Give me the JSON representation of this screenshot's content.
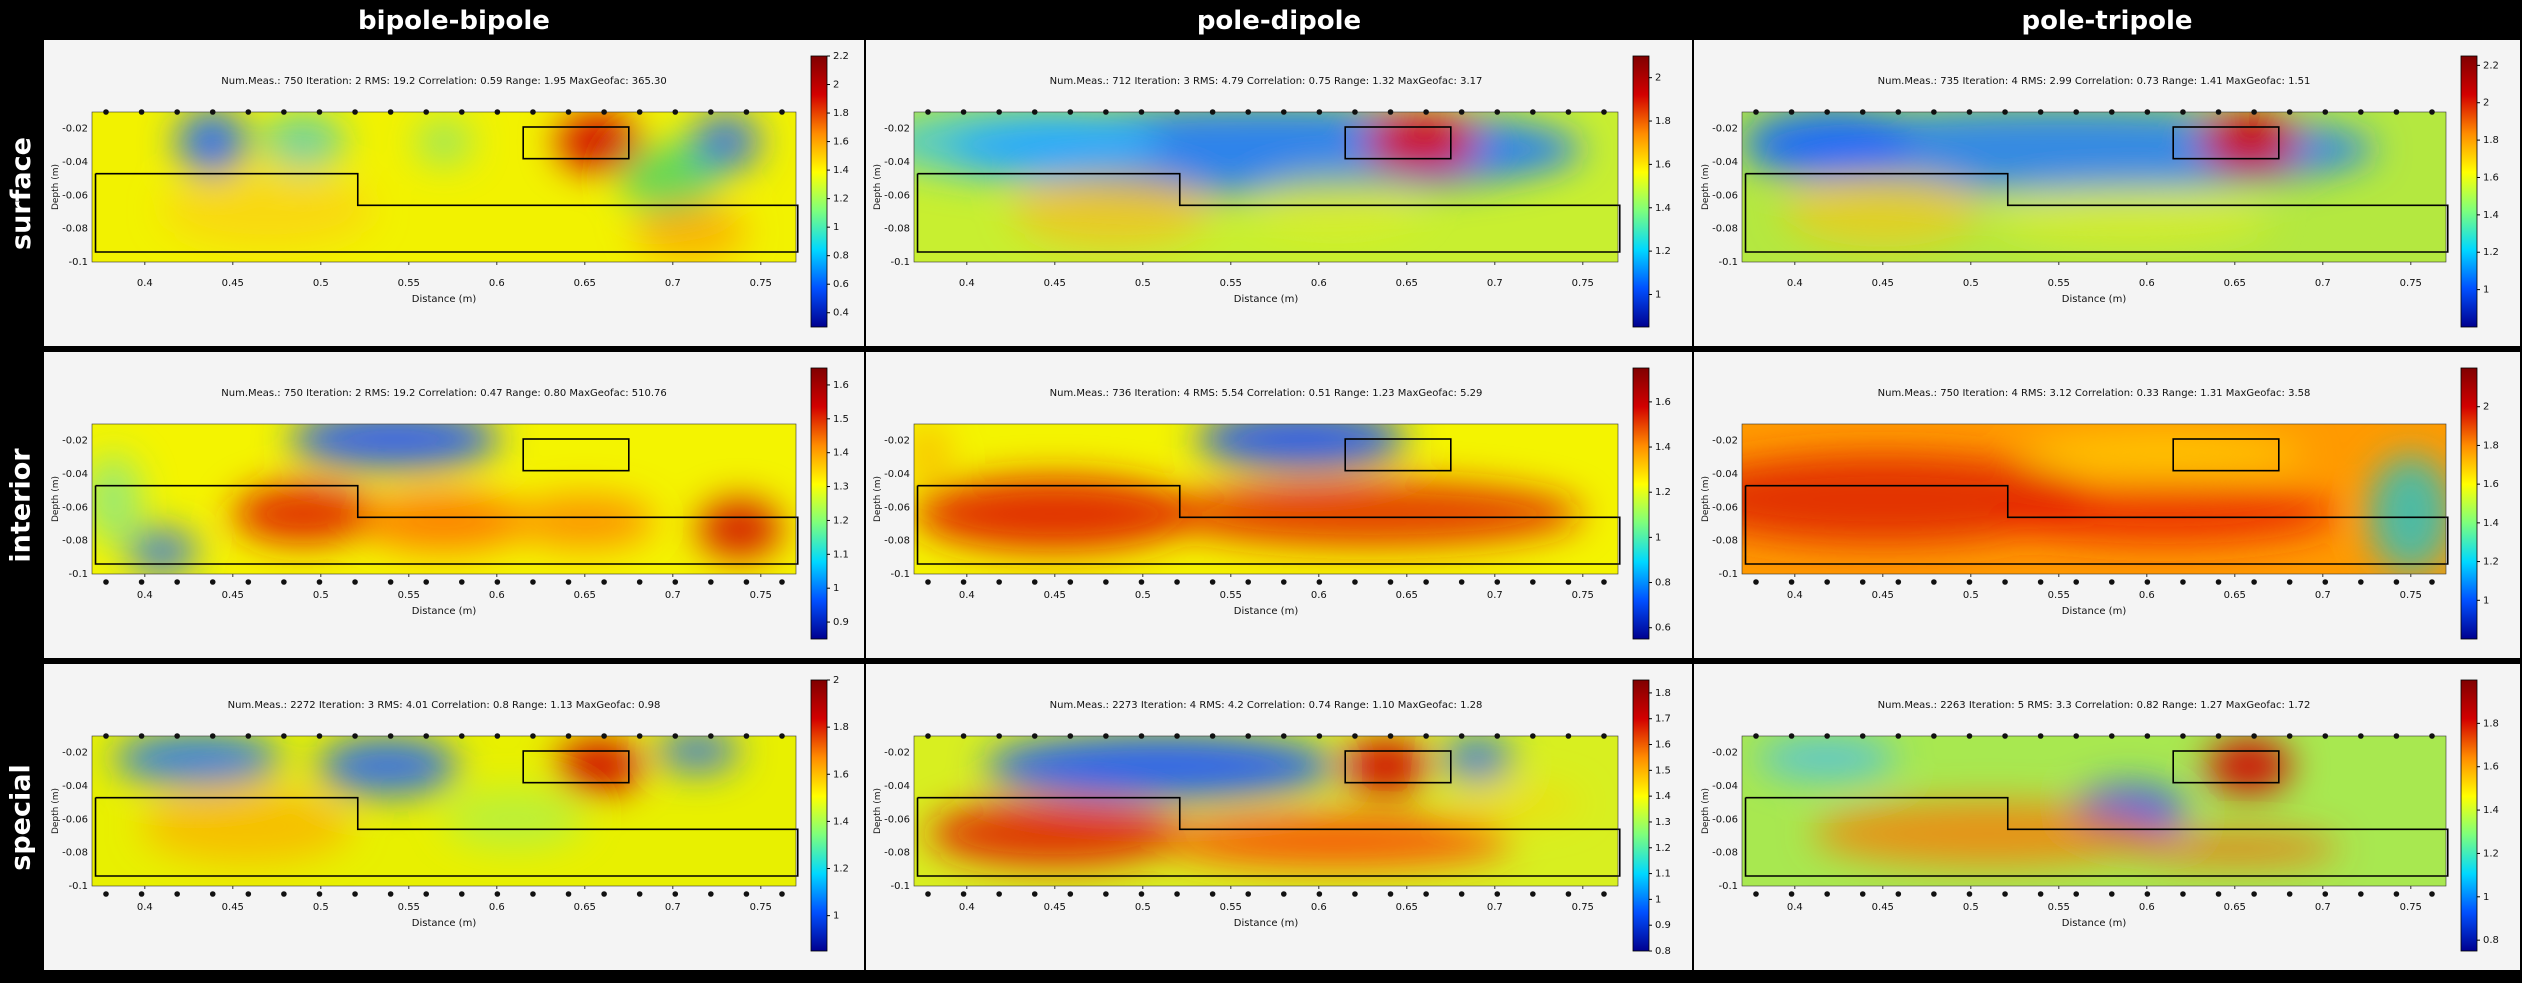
{
  "columns": [
    "bipole-bipole",
    "pole-dipole",
    "pole-tripole"
  ],
  "rows": [
    "surface",
    "interior",
    "special"
  ],
  "colors": {
    "colormap": [
      "#00008f",
      "#0050ff",
      "#00d8ff",
      "#7dff7d",
      "#ffff00",
      "#ff8c00",
      "#d20000",
      "#800000"
    ],
    "background": "#000000",
    "panel": "#f4f4f4"
  },
  "chart_data": [
    {
      "type": "heatmap",
      "id": "surface-bipole-bipole",
      "stats": "Num.Meas.: 750   Iteration: 2   RMS: 19.2   Correlation: 0.59   Range: 1.95   MaxGeofac: 365.30",
      "xlabel": "Distance (m)",
      "ylabel": "Depth (m)",
      "xlim": [
        0.37,
        0.77
      ],
      "ylim": [
        -0.1,
        -0.01
      ],
      "xticks": [
        "0.4",
        "0.45",
        "0.5",
        "0.55",
        "0.6",
        "0.65",
        "0.7",
        "0.75"
      ],
      "yticks": [
        "-0.02",
        "-0.04",
        "-0.06",
        "-0.08",
        "-0.1"
      ],
      "colorbar": {
        "min": 0.3,
        "max": 2.2,
        "ticks": [
          "2.2",
          "2",
          "1.8",
          "1.6",
          "1.4",
          "1.2",
          "1",
          "0.8",
          "0.6",
          "0.4"
        ]
      },
      "electrodes": "top"
    },
    {
      "type": "heatmap",
      "id": "surface-pole-dipole",
      "stats": "Num.Meas.: 712   Iteration: 3   RMS: 4.79   Correlation: 0.75   Range: 1.32   MaxGeofac: 3.17",
      "xlabel": "Distance (m)",
      "ylabel": "Depth (m)",
      "xlim": [
        0.37,
        0.77
      ],
      "ylim": [
        -0.1,
        -0.01
      ],
      "xticks": [
        "0.4",
        "0.45",
        "0.5",
        "0.55",
        "0.6",
        "0.65",
        "0.7",
        "0.75"
      ],
      "yticks": [
        "-0.02",
        "-0.04",
        "-0.06",
        "-0.08",
        "-0.1"
      ],
      "colorbar": {
        "min": 0.85,
        "max": 2.1,
        "ticks": [
          "2",
          "1.8",
          "1.6",
          "1.4",
          "1.2",
          "1"
        ]
      },
      "electrodes": "top"
    },
    {
      "type": "heatmap",
      "id": "surface-pole-tripole",
      "stats": "Num.Meas.: 735   Iteration: 4   RMS: 2.99   Correlation: 0.73   Range: 1.41   MaxGeofac: 1.51",
      "xlabel": "Distance (m)",
      "ylabel": "Depth (m)",
      "xlim": [
        0.37,
        0.77
      ],
      "ylim": [
        -0.1,
        -0.01
      ],
      "xticks": [
        "0.4",
        "0.45",
        "0.5",
        "0.55",
        "0.6",
        "0.65",
        "0.7",
        "0.75"
      ],
      "yticks": [
        "-0.02",
        "-0.04",
        "-0.06",
        "-0.08",
        "-0.1"
      ],
      "colorbar": {
        "min": 0.8,
        "max": 2.25,
        "ticks": [
          "2.2",
          "2",
          "1.8",
          "1.6",
          "1.4",
          "1.2",
          "1"
        ]
      },
      "electrodes": "top"
    },
    {
      "type": "heatmap",
      "id": "interior-bipole-bipole",
      "stats": "Num.Meas.: 750   Iteration: 2   RMS: 19.2   Correlation: 0.47   Range: 0.80   MaxGeofac: 510.76",
      "xlabel": "Distance (m)",
      "ylabel": "Depth (m)",
      "xlim": [
        0.37,
        0.77
      ],
      "ylim": [
        -0.1,
        -0.01
      ],
      "xticks": [
        "0.4",
        "0.45",
        "0.5",
        "0.55",
        "0.6",
        "0.65",
        "0.7",
        "0.75"
      ],
      "yticks": [
        "-0.02",
        "-0.04",
        "-0.06",
        "-0.08",
        "-0.1"
      ],
      "colorbar": {
        "min": 0.85,
        "max": 1.65,
        "ticks": [
          "1.6",
          "1.5",
          "1.4",
          "1.3",
          "1.2",
          "1.1",
          "1",
          "0.9"
        ]
      },
      "electrodes": "bottom"
    },
    {
      "type": "heatmap",
      "id": "interior-pole-dipole",
      "stats": "Num.Meas.: 736   Iteration: 4   RMS: 5.54   Correlation: 0.51   Range: 1.23   MaxGeofac: 5.29",
      "xlabel": "Distance (m)",
      "ylabel": "Depth (m)",
      "xlim": [
        0.37,
        0.77
      ],
      "ylim": [
        -0.1,
        -0.01
      ],
      "xticks": [
        "0.4",
        "0.45",
        "0.5",
        "0.55",
        "0.6",
        "0.65",
        "0.7",
        "0.75"
      ],
      "yticks": [
        "-0.02",
        "-0.04",
        "-0.06",
        "-0.08",
        "-0.1"
      ],
      "colorbar": {
        "min": 0.55,
        "max": 1.75,
        "ticks": [
          "1.6",
          "1.4",
          "1.2",
          "1",
          "0.8",
          "0.6"
        ]
      },
      "electrodes": "bottom"
    },
    {
      "type": "heatmap",
      "id": "interior-pole-tripole",
      "stats": "Num.Meas.: 750   Iteration: 4   RMS: 3.12   Correlation: 0.33   Range: 1.31   MaxGeofac: 3.58",
      "xlabel": "Distance (m)",
      "ylabel": "Depth (m)",
      "xlim": [
        0.37,
        0.77
      ],
      "ylim": [
        -0.1,
        -0.01
      ],
      "xticks": [
        "0.4",
        "0.45",
        "0.5",
        "0.55",
        "0.6",
        "0.65",
        "0.7",
        "0.75"
      ],
      "yticks": [
        "-0.02",
        "-0.04",
        "-0.06",
        "-0.08",
        "-0.1"
      ],
      "colorbar": {
        "min": 0.8,
        "max": 2.2,
        "ticks": [
          "2",
          "1.8",
          "1.6",
          "1.4",
          "1.2",
          "1"
        ]
      },
      "electrodes": "bottom"
    },
    {
      "type": "heatmap",
      "id": "special-bipole-bipole",
      "stats": "Num.Meas.: 2272   Iteration: 3   RMS: 4.01   Correlation: 0.8   Range: 1.13   MaxGeofac: 0.98",
      "xlabel": "Distance (m)",
      "ylabel": "Depth (m)",
      "xlim": [
        0.37,
        0.77
      ],
      "ylim": [
        -0.1,
        -0.01
      ],
      "xticks": [
        "0.4",
        "0.45",
        "0.5",
        "0.55",
        "0.6",
        "0.65",
        "0.7",
        "0.75"
      ],
      "yticks": [
        "-0.02",
        "-0.04",
        "-0.06",
        "-0.08",
        "-0.1"
      ],
      "colorbar": {
        "min": 0.85,
        "max": 2.0,
        "ticks": [
          "2",
          "1.8",
          "1.6",
          "1.4",
          "1.2",
          "1"
        ]
      },
      "electrodes": "both"
    },
    {
      "type": "heatmap",
      "id": "special-pole-dipole",
      "stats": "Num.Meas.: 2273   Iteration: 4   RMS: 4.2   Correlation: 0.74   Range: 1.10   MaxGeofac: 1.28",
      "xlabel": "Distance (m)",
      "ylabel": "Depth (m)",
      "xlim": [
        0.37,
        0.77
      ],
      "ylim": [
        -0.1,
        -0.01
      ],
      "xticks": [
        "0.4",
        "0.45",
        "0.5",
        "0.55",
        "0.6",
        "0.65",
        "0.7",
        "0.75"
      ],
      "yticks": [
        "-0.02",
        "-0.04",
        "-0.06",
        "-0.08",
        "-0.1"
      ],
      "colorbar": {
        "min": 0.8,
        "max": 1.85,
        "ticks": [
          "1.8",
          "1.7",
          "1.6",
          "1.5",
          "1.4",
          "1.3",
          "1.2",
          "1.1",
          "1",
          "0.9",
          "0.8"
        ]
      },
      "electrodes": "both"
    },
    {
      "type": "heatmap",
      "id": "special-pole-tripole",
      "stats": "Num.Meas.: 2263   Iteration: 5   RMS: 3.3   Correlation: 0.82   Range: 1.27   MaxGeofac: 1.72",
      "xlabel": "Distance (m)",
      "ylabel": "Depth (m)",
      "xlim": [
        0.37,
        0.77
      ],
      "ylim": [
        -0.1,
        -0.01
      ],
      "xticks": [
        "0.4",
        "0.45",
        "0.5",
        "0.55",
        "0.6",
        "0.65",
        "0.7",
        "0.75"
      ],
      "yticks": [
        "-0.02",
        "-0.04",
        "-0.06",
        "-0.08",
        "-0.1"
      ],
      "colorbar": {
        "min": 0.75,
        "max": 2.0,
        "ticks": [
          "1.8",
          "1.6",
          "1.4",
          "1.2",
          "1",
          "0.8"
        ]
      },
      "electrodes": "both"
    }
  ]
}
